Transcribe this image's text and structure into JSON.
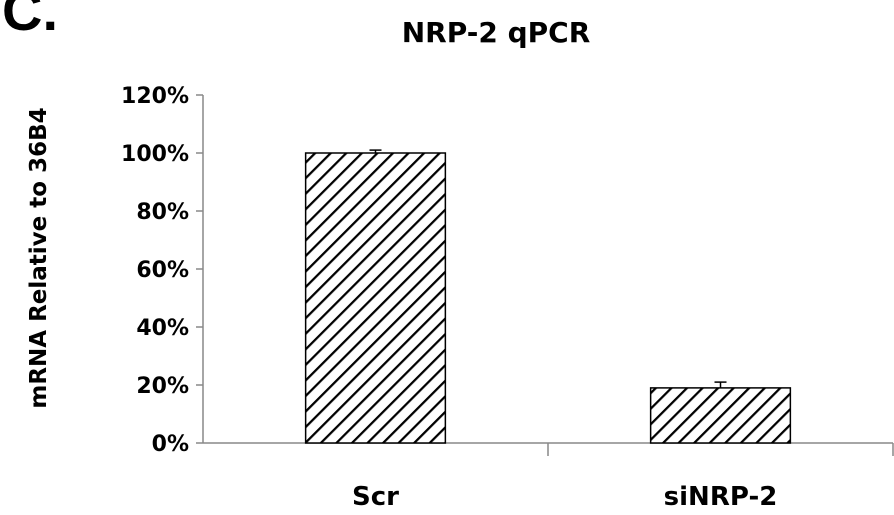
{
  "panel_label": "C.",
  "chart_data": {
    "type": "bar",
    "title": "NRP-2 qPCR",
    "xlabel": "",
    "ylabel": "mRNA Relative to 36B4",
    "categories": [
      "Scr",
      "siNRP-2"
    ],
    "values": [
      100,
      19
    ],
    "errors": [
      1,
      2
    ],
    "ylim": [
      0,
      120
    ],
    "yticks": [
      "0%",
      "20%",
      "40%",
      "60%",
      "80%",
      "100%",
      "120%"
    ],
    "bar_fill": "diagonal-hatch",
    "colors": {
      "bar_stroke": "#000000",
      "hatch": "#000000",
      "background": "#ffffff"
    },
    "grid": false,
    "legend": "none"
  }
}
